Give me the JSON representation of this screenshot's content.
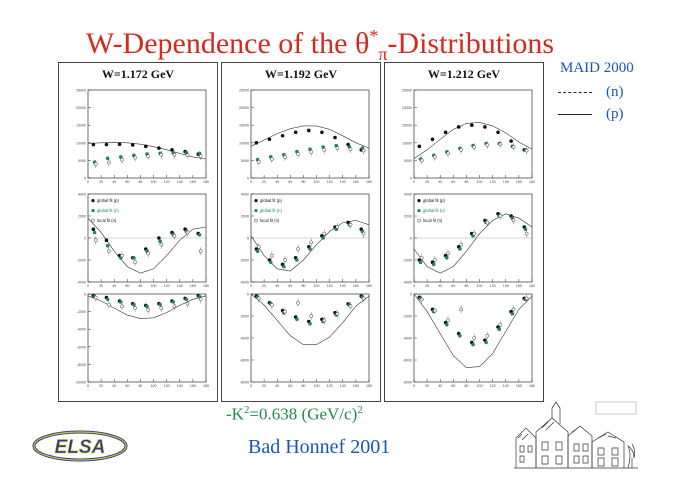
{
  "title": {
    "prefix": "W-Dependence of the ",
    "theta": "θ",
    "star": "*",
    "pi": "π",
    "suffix": "-Distributions"
  },
  "legend": {
    "header": "MAID 2000",
    "entries": [
      {
        "style": "dashed",
        "label": "(n)"
      },
      {
        "style": "solid",
        "label": "(p)"
      }
    ]
  },
  "plot_legend": [
    "global fit (p)",
    "global fit (n)",
    "local fit (n)"
  ],
  "footer": {
    "k_prefix": "-K",
    "k_exp": "2",
    "k_value": "=0.638 (GeV/c)",
    "k_unit_exp": "2",
    "conference": "Bad Honnef 2001"
  },
  "logo_text": "ELSA",
  "colors": {
    "title": "#d42a1f",
    "legend": "#1a56b8",
    "green": "#1f8a4c",
    "black": "#111111"
  },
  "chart_data": [
    {
      "type": "scatter",
      "column": "W=1.172 GeV",
      "row": 1,
      "ylim": [
        0,
        25000
      ],
      "yticks": [
        0,
        5000,
        10000,
        15000,
        20000,
        25000
      ],
      "xlim": [
        0,
        180
      ],
      "xticks": [
        0,
        20,
        40,
        60,
        80,
        100,
        120,
        140,
        160,
        180
      ],
      "x": [
        10,
        30,
        50,
        70,
        90,
        110,
        130,
        150,
        170
      ],
      "series": [
        {
          "values": [
            9500,
            9500,
            9600,
            9400,
            9000,
            8500,
            8000,
            7500,
            6800
          ]
        },
        {
          "values": [
            4500,
            5600,
            6000,
            6400,
            6800,
            7000,
            7100,
            7200,
            7000
          ]
        },
        {
          "values": [
            4000,
            4400,
            5200,
            5800,
            6200,
            6600,
            6600,
            6500,
            6200
          ]
        }
      ],
      "curve": [
        [
          0,
          9800
        ],
        [
          20,
          10000
        ],
        [
          40,
          10100
        ],
        [
          60,
          10000
        ],
        [
          80,
          9600
        ],
        [
          100,
          8900
        ],
        [
          120,
          8000
        ],
        [
          140,
          7000
        ],
        [
          160,
          6000
        ],
        [
          180,
          5400
        ]
      ]
    },
    {
      "type": "scatter",
      "column": "W=1.172 GeV",
      "row": 2,
      "ylim": [
        -4000,
        4000
      ],
      "yticks": [
        -4000,
        -2000,
        0,
        2000,
        4000
      ],
      "xlim": [
        0,
        180
      ],
      "x": [
        10,
        30,
        50,
        70,
        90,
        110,
        130,
        150,
        170
      ],
      "series": [
        {
          "values": [
            800,
            -200,
            -1600,
            -1800,
            -1000,
            0,
            500,
            800,
            400
          ]
        },
        {
          "values": [
            500,
            -700,
            -1800,
            -1800,
            -1200,
            -300,
            300,
            600,
            300
          ]
        },
        {
          "values": [
            -200,
            -1200,
            -1600,
            -2200,
            -1400,
            -600,
            200,
            500,
            -1200
          ]
        }
      ],
      "curve": [
        [
          0,
          1800
        ],
        [
          20,
          500
        ],
        [
          40,
          -1200
        ],
        [
          60,
          -2600
        ],
        [
          80,
          -3200
        ],
        [
          100,
          -2800
        ],
        [
          120,
          -1600
        ],
        [
          140,
          -200
        ],
        [
          160,
          800
        ],
        [
          180,
          1000
        ]
      ]
    },
    {
      "type": "scatter",
      "column": "W=1.172 GeV",
      "row": 3,
      "ylim": [
        -10000,
        0
      ],
      "yticks": [
        0,
        -2000,
        -4000,
        -6000,
        -8000,
        -10000
      ],
      "xlim": [
        0,
        180
      ],
      "x": [
        10,
        30,
        50,
        70,
        90,
        110,
        130,
        150,
        170
      ],
      "series": [
        {
          "values": [
            -200,
            -400,
            -800,
            -1100,
            -1300,
            -1100,
            -800,
            -500,
            -200
          ]
        },
        {
          "values": [
            -300,
            -600,
            -900,
            -1200,
            -1400,
            -1200,
            -900,
            -600,
            -300
          ]
        },
        {
          "values": [
            -400,
            -1200,
            -1400,
            -1600,
            -1800,
            -1600,
            -1400,
            -1100,
            -600
          ]
        }
      ],
      "curve": [
        [
          0,
          -200
        ],
        [
          20,
          -800
        ],
        [
          40,
          -1600
        ],
        [
          60,
          -2400
        ],
        [
          80,
          -2800
        ],
        [
          100,
          -2700
        ],
        [
          120,
          -2100
        ],
        [
          140,
          -1300
        ],
        [
          160,
          -600
        ],
        [
          180,
          -200
        ]
      ]
    },
    {
      "type": "scatter",
      "column": "W=1.192 GeV",
      "row": 1,
      "ylim": [
        0,
        25000
      ],
      "yticks": [
        0,
        5000,
        10000,
        15000,
        20000,
        25000
      ],
      "xlim": [
        0,
        180
      ],
      "x": [
        10,
        30,
        50,
        70,
        90,
        110,
        130,
        150,
        170
      ],
      "series": [
        {
          "values": [
            10000,
            11000,
            12000,
            13000,
            13500,
            13000,
            11500,
            9500,
            8000
          ]
        },
        {
          "values": [
            5200,
            6000,
            6600,
            7500,
            8200,
            8800,
            9200,
            8800,
            8500
          ]
        },
        {
          "values": [
            4600,
            5400,
            6000,
            6800,
            7400,
            8000,
            8500,
            8200,
            7800
          ]
        }
      ],
      "curve": [
        [
          0,
          9000
        ],
        [
          20,
          10800
        ],
        [
          40,
          12600
        ],
        [
          60,
          14000
        ],
        [
          80,
          14800
        ],
        [
          100,
          14800
        ],
        [
          120,
          13800
        ],
        [
          140,
          12000
        ],
        [
          160,
          10000
        ],
        [
          180,
          8500
        ]
      ]
    },
    {
      "type": "scatter",
      "column": "W=1.192 GeV",
      "row": 2,
      "ylim": [
        -4000,
        4000
      ],
      "yticks": [
        -4000,
        -2000,
        0,
        2000,
        4000
      ],
      "xlim": [
        0,
        180
      ],
      "x": [
        10,
        30,
        50,
        70,
        90,
        110,
        130,
        150,
        170
      ],
      "series": [
        {
          "values": [
            -1000,
            -2000,
            -2400,
            -1800,
            -800,
            200,
            1000,
            1400,
            800
          ]
        },
        {
          "values": [
            -1200,
            -2200,
            -2600,
            -2000,
            -1000,
            0,
            800,
            1200,
            600
          ]
        },
        {
          "values": [
            -800,
            -1600,
            -2000,
            -1000,
            -400,
            400,
            1000,
            1200,
            400
          ]
        }
      ],
      "curve": [
        [
          0,
          200
        ],
        [
          20,
          -1600
        ],
        [
          40,
          -2800
        ],
        [
          60,
          -3000
        ],
        [
          80,
          -2000
        ],
        [
          100,
          -600
        ],
        [
          120,
          600
        ],
        [
          140,
          1400
        ],
        [
          160,
          1600
        ],
        [
          180,
          1200
        ]
      ]
    },
    {
      "type": "scatter",
      "column": "W=1.192 GeV",
      "row": 3,
      "ylim": [
        -8000,
        0
      ],
      "yticks": [
        0,
        -2000,
        -4000,
        -6000,
        -8000
      ],
      "xlim": [
        0,
        180
      ],
      "x": [
        10,
        30,
        50,
        70,
        90,
        110,
        130,
        150,
        170
      ],
      "series": [
        {
          "values": [
            -200,
            -800,
            -1500,
            -2100,
            -2500,
            -2300,
            -1700,
            -900,
            -200
          ]
        },
        {
          "values": [
            -300,
            -900,
            -1700,
            -2300,
            -2700,
            -2500,
            -1900,
            -1000,
            -300
          ]
        },
        {
          "values": [
            -400,
            -1000,
            -1600,
            -800,
            -2000,
            -2400,
            -1800,
            -1100,
            -400
          ]
        }
      ],
      "curve": [
        [
          0,
          0
        ],
        [
          20,
          -1000
        ],
        [
          40,
          -2400
        ],
        [
          60,
          -3800
        ],
        [
          80,
          -4600
        ],
        [
          100,
          -4600
        ],
        [
          120,
          -3900
        ],
        [
          140,
          -2600
        ],
        [
          160,
          -1100
        ],
        [
          180,
          -200
        ]
      ]
    },
    {
      "type": "scatter",
      "column": "W=1.212 GeV",
      "row": 1,
      "ylim": [
        0,
        25000
      ],
      "yticks": [
        0,
        5000,
        10000,
        15000,
        20000,
        25000
      ],
      "xlim": [
        0,
        180
      ],
      "x": [
        10,
        30,
        50,
        70,
        90,
        110,
        130,
        150,
        170
      ],
      "series": [
        {
          "values": [
            9000,
            11000,
            13000,
            14500,
            15000,
            14500,
            13000,
            10500,
            8000
          ]
        },
        {
          "values": [
            5400,
            6400,
            7400,
            8400,
            9200,
            9800,
            9800,
            9000,
            8000
          ]
        },
        {
          "values": [
            5000,
            6000,
            7000,
            8000,
            8800,
            9400,
            9600,
            8800,
            7800
          ]
        }
      ],
      "curve": [
        [
          0,
          5500
        ],
        [
          20,
          8000
        ],
        [
          40,
          11000
        ],
        [
          60,
          13800
        ],
        [
          80,
          15500
        ],
        [
          100,
          15800
        ],
        [
          120,
          14800
        ],
        [
          140,
          12800
        ],
        [
          160,
          10200
        ],
        [
          180,
          8200
        ]
      ]
    },
    {
      "type": "scatter",
      "column": "W=1.212 GeV",
      "row": 2,
      "ylim": [
        -4000,
        4000
      ],
      "yticks": [
        -4000,
        -2000,
        0,
        2000,
        4000
      ],
      "xlim": [
        0,
        180
      ],
      "x": [
        10,
        30,
        50,
        70,
        90,
        110,
        130,
        150,
        170
      ],
      "series": [
        {
          "values": [
            -2000,
            -2200,
            -1600,
            -800,
            400,
            1600,
            2200,
            2000,
            1000
          ]
        },
        {
          "values": [
            -2200,
            -2400,
            -1800,
            -1000,
            200,
            1400,
            2000,
            1800,
            800
          ]
        },
        {
          "values": [
            -1800,
            -2000,
            -1400,
            -600,
            400,
            1400,
            2000,
            1600,
            400
          ]
        }
      ],
      "curve": [
        [
          0,
          -1000
        ],
        [
          20,
          -2600
        ],
        [
          40,
          -3200
        ],
        [
          60,
          -2600
        ],
        [
          80,
          -1200
        ],
        [
          100,
          400
        ],
        [
          120,
          1600
        ],
        [
          140,
          2200
        ],
        [
          160,
          1800
        ],
        [
          180,
          1000
        ]
      ]
    },
    {
      "type": "scatter",
      "column": "W=1.212 GeV",
      "row": 3,
      "ylim": [
        -8000,
        0
      ],
      "yticks": [
        0,
        -2000,
        -4000,
        -6000,
        -8000
      ],
      "xlim": [
        0,
        180
      ],
      "x": [
        10,
        30,
        50,
        70,
        90,
        110,
        130,
        150,
        170
      ],
      "series": [
        {
          "values": [
            -300,
            -1400,
            -2600,
            -3600,
            -4400,
            -4200,
            -3000,
            -1600,
            -400
          ]
        },
        {
          "values": [
            -400,
            -1600,
            -2800,
            -3800,
            -4600,
            -4400,
            -3200,
            -1800,
            -500
          ]
        },
        {
          "values": [
            -500,
            -1500,
            -2400,
            -1400,
            -4000,
            -3800,
            -2800,
            -1400,
            -400
          ]
        }
      ],
      "curve": [
        [
          0,
          0
        ],
        [
          20,
          -1600
        ],
        [
          40,
          -3600
        ],
        [
          60,
          -5600
        ],
        [
          80,
          -6700
        ],
        [
          100,
          -6600
        ],
        [
          120,
          -5400
        ],
        [
          140,
          -3400
        ],
        [
          160,
          -1400
        ],
        [
          180,
          -200
        ]
      ]
    }
  ]
}
